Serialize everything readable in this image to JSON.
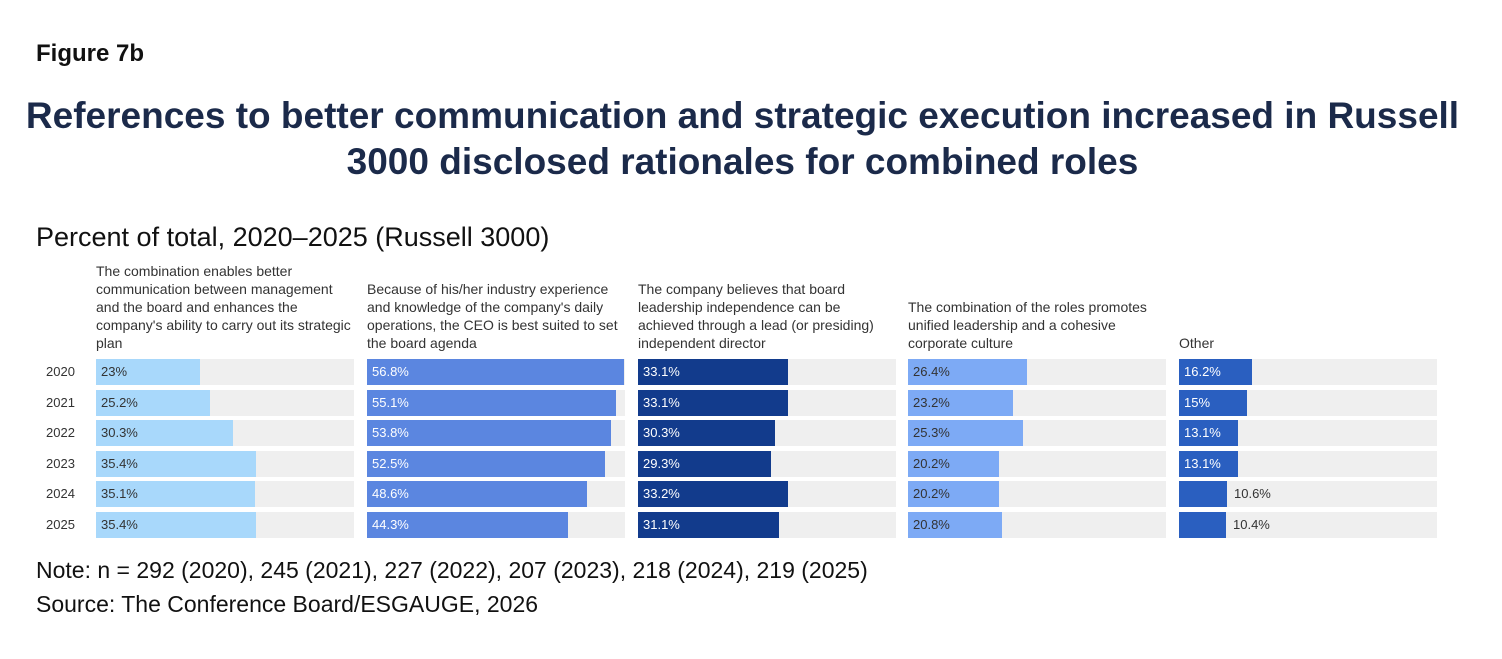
{
  "figure_label": "Figure 7b",
  "chart_data": {
    "type": "bar",
    "title": "References to better communication and strategic execution increased in Russell 3000 disclosed rationales for combined roles",
    "subtitle": "Percent of total, 2020–2025 (Russell 3000)",
    "categories": [
      "2020",
      "2021",
      "2022",
      "2023",
      "2024",
      "2025"
    ],
    "xlim": [
      0,
      57
    ],
    "series": [
      {
        "name": "The combination enables better communication between management and the board and enhances the company's ability to carry out its strategic plan",
        "color": "#a8d8fb",
        "label_color": "#333333",
        "values": [
          23,
          25.2,
          30.3,
          35.4,
          35.1,
          35.4
        ],
        "labels": [
          "23%",
          "25.2%",
          "30.3%",
          "35.4%",
          "35.1%",
          "35.4%"
        ]
      },
      {
        "name": "Because of his/her industry experience and knowledge of the company's daily operations, the CEO is best suited to set the board agenda",
        "color": "#5b86e0",
        "label_color": "#ffffff",
        "values": [
          56.8,
          55.1,
          53.8,
          52.5,
          48.6,
          44.3
        ],
        "labels": [
          "56.8%",
          "55.1%",
          "53.8%",
          "52.5%",
          "48.6%",
          "44.3%"
        ]
      },
      {
        "name": "The company believes that board leadership independence can be achieved through a lead (or presiding) independent director",
        "color": "#123b8c",
        "label_color": "#ffffff",
        "values": [
          33.1,
          33.1,
          30.3,
          29.3,
          33.2,
          31.1
        ],
        "labels": [
          "33.1%",
          "33.1%",
          "30.3%",
          "29.3%",
          "33.2%",
          "31.1%"
        ]
      },
      {
        "name": "The combination of the roles promotes unified leadership and a cohesive corporate culture",
        "color": "#7daaf5",
        "label_color": "#333333",
        "values": [
          26.4,
          23.2,
          25.3,
          20.2,
          20.2,
          20.8
        ],
        "labels": [
          "26.4%",
          "23.2%",
          "25.3%",
          "20.2%",
          "20.2%",
          "20.8%"
        ]
      },
      {
        "name": "Other",
        "color": "#2a5fc0",
        "label_color": "#ffffff",
        "values": [
          16.2,
          15,
          13.1,
          13.1,
          10.6,
          10.4
        ],
        "labels": [
          "16.2%",
          "15%",
          "13.1%",
          "13.1%",
          "10.6%",
          "10.4%"
        ]
      }
    ]
  },
  "note": "Note: n = 292 (2020), 245 (2021), 227 (2022), 207 (2023), 218 (2024), 219 (2025)",
  "source": "Source: The Conference Board/ESGAUGE, 2026"
}
